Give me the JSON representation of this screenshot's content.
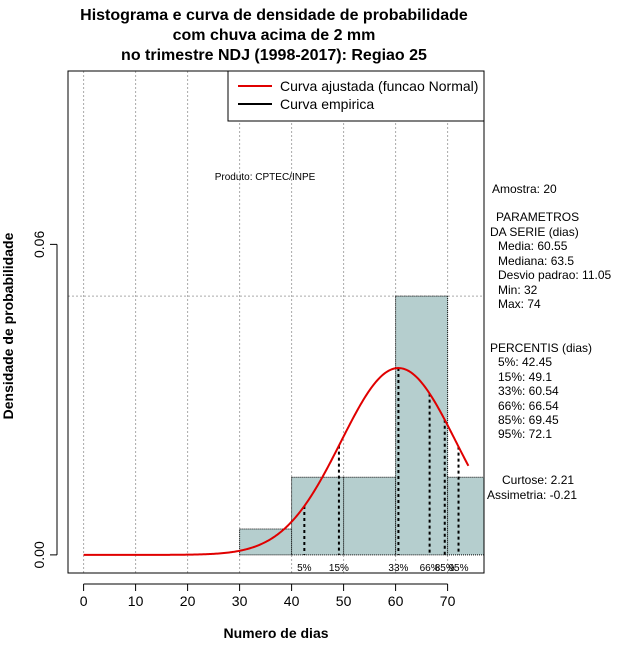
{
  "title_lines": [
    "Histograma e curva de densidade de probabilidade",
    "com chuva acima de 2 mm",
    "no trimestre NDJ (1998-2017): Regiao 25"
  ],
  "legend": {
    "fitted": "Curva ajustada (funcao Normal)",
    "empirical": "Curva empirica"
  },
  "product_note": "Produto: CPTEC/INPE",
  "stats": {
    "sample": "Amostra: 20",
    "params_header_1": "PARAMETROS",
    "params_header_2": "DA SERIE (dias)",
    "mean": "Media: 60.55",
    "median": "Mediana: 63.5",
    "sd": "Desvio padrao: 11.05",
    "min": "Min: 32",
    "max": "Max: 74",
    "percentiles_header": "PERCENTIS (dias)",
    "p5": "5%: 42.45",
    "p15": "15%: 49.1",
    "p33": "33%: 60.54",
    "p66": "66%: 66.54",
    "p85": "85%: 69.45",
    "p95": "95%: 72.1",
    "kurtosis": "Curtose: 2.21",
    "skewness": "Assimetria: -0.21"
  },
  "colors": {
    "bar_fill": "#b5cece",
    "fitted_curve": "#e00000",
    "grid": "#aaaaaa"
  },
  "chart_data": {
    "type": "bar",
    "title": "Histograma e curva de densidade de probabilidade com chuva acima de 2 mm no trimestre NDJ (1998-2017): Regiao 25",
    "xlabel": "Numero de dias",
    "ylabel": "Densidade de probabilidade",
    "xlim": [
      -3,
      77
    ],
    "ylim": [
      -0.0035,
      0.0935
    ],
    "x_ticks": [
      0,
      10,
      20,
      30,
      40,
      50,
      60,
      70
    ],
    "y_ticks": [
      0.0,
      0.06
    ],
    "y_tick_labels": [
      "0.00",
      "0.06"
    ],
    "grid": true,
    "histogram": {
      "bin_edges": [
        30,
        40,
        50,
        60,
        70,
        77
      ],
      "densities": [
        0.005,
        0.015,
        0.015,
        0.05,
        0.015
      ]
    },
    "fitted_normal": {
      "mean": 60.55,
      "sd": 11.05,
      "x_from": 0,
      "x_to": 74
    },
    "percentiles": [
      {
        "label": "5%",
        "value": 42.45
      },
      {
        "label": "15%",
        "value": 49.1
      },
      {
        "label": "33%",
        "value": 60.54
      },
      {
        "label": "66%",
        "value": 66.54
      },
      {
        "label": "85%",
        "value": 69.45
      },
      {
        "label": "95%",
        "value": 72.1
      }
    ],
    "reference_hline": 0.05
  }
}
